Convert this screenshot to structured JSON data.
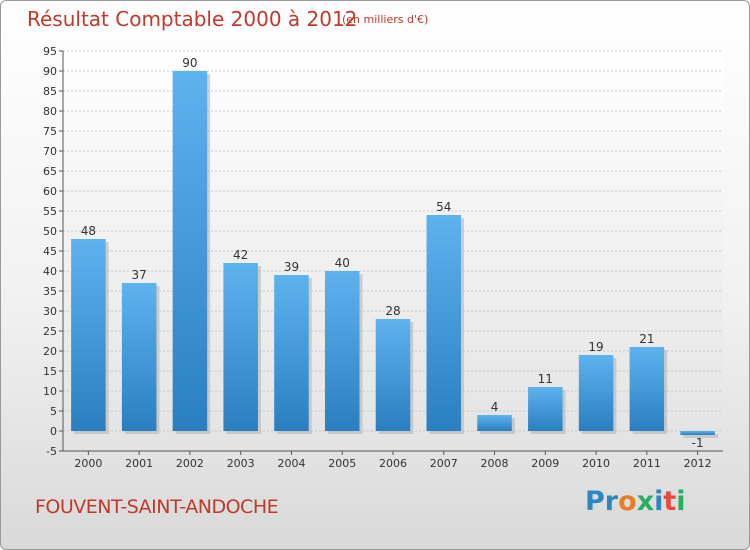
{
  "header": {
    "title": "Résultat Comptable 2000 à 2012",
    "subtitle": "(en milliers d'€)"
  },
  "footer": {
    "commune": "FOUVENT-SAINT-ANDOCHE",
    "logo_letters": [
      {
        "ch": "P",
        "color": "#2e86c1"
      },
      {
        "ch": "r",
        "color": "#2e86c1"
      },
      {
        "ch": "o",
        "color": "#e67e22"
      },
      {
        "ch": "x",
        "color": "#27ae60"
      },
      {
        "ch": "i",
        "color": "#2e86c1"
      },
      {
        "ch": "t",
        "color": "#e74c3c"
      },
      {
        "ch": "i",
        "color": "#27ae60"
      }
    ]
  },
  "chart_data": {
    "type": "bar",
    "title": "Résultat Comptable 2000 à 2012",
    "categories": [
      "2000",
      "2001",
      "2002",
      "2003",
      "2004",
      "2005",
      "2006",
      "2007",
      "2008",
      "2009",
      "2010",
      "2011",
      "2012"
    ],
    "values": [
      48,
      37,
      90,
      42,
      39,
      40,
      28,
      54,
      4,
      11,
      19,
      21,
      -1
    ],
    "ylim": [
      -5,
      95
    ],
    "ytick_step": 5,
    "grid": true,
    "bar_color": "#4da3e6"
  }
}
